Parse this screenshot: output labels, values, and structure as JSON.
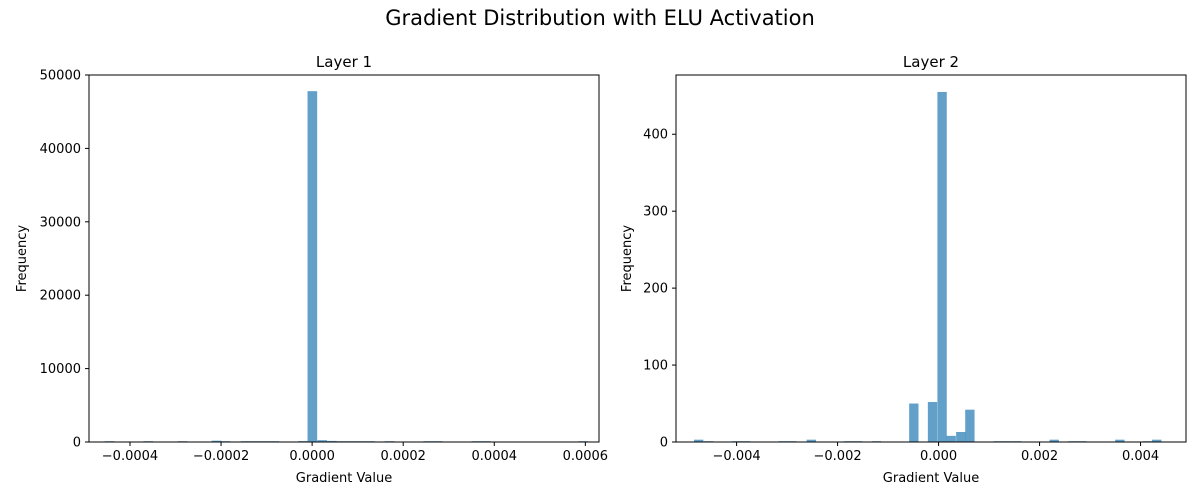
{
  "figure": {
    "title": "Gradient Distribution with ELU Activation"
  },
  "chart_data": [
    {
      "type": "bar",
      "title": "Layer 1",
      "xlabel": "Gradient Value",
      "ylabel": "Frequency",
      "xlim": [
        -0.00049,
        0.00063
      ],
      "ylim": [
        0,
        50000
      ],
      "xticks": [
        -0.0004,
        -0.0002,
        0.0,
        0.0002,
        0.0004,
        0.0006
      ],
      "xtick_labels": [
        "−0.0004",
        "−0.0002",
        "0.0000",
        "0.0002",
        "0.0004",
        "0.0006"
      ],
      "yticks": [
        0,
        10000,
        20000,
        30000,
        40000,
        50000
      ],
      "ytick_labels": [
        "0",
        "10000",
        "20000",
        "30000",
        "40000",
        "50000"
      ],
      "color": "#1f77b4",
      "bar_alpha": 0.7,
      "bin_width": 2.12e-05,
      "bins": [
        {
          "x": -0.000445,
          "count": 60
        },
        {
          "x": -0.00036,
          "count": 40
        },
        {
          "x": -0.000285,
          "count": 40
        },
        {
          "x": -0.00021,
          "count": 180
        },
        {
          "x": -0.00019,
          "count": 60
        },
        {
          "x": -0.000146,
          "count": 60
        },
        {
          "x": -0.000125,
          "count": 50
        },
        {
          "x": -0.000104,
          "count": 50
        },
        {
          "x": -8.3e-05,
          "count": 50
        },
        {
          "x": -2e-05,
          "count": 120
        },
        {
          "x": 5e-07,
          "count": 47800
        },
        {
          "x": 2.2e-05,
          "count": 250
        },
        {
          "x": 4.3e-05,
          "count": 150
        },
        {
          "x": 6.4e-05,
          "count": 80
        },
        {
          "x": 8.5e-05,
          "count": 60
        },
        {
          "x": 0.000106,
          "count": 60
        },
        {
          "x": 0.000127,
          "count": 60
        },
        {
          "x": 0.00017,
          "count": 50
        },
        {
          "x": 0.000255,
          "count": 50
        },
        {
          "x": 0.000276,
          "count": 40
        },
        {
          "x": 0.000361,
          "count": 40
        },
        {
          "x": 0.000382,
          "count": 40
        },
        {
          "x": 0.000595,
          "count": 60
        }
      ]
    },
    {
      "type": "bar",
      "title": "Layer 2",
      "xlabel": "Gradient Value",
      "ylabel": "Frequency",
      "xlim": [
        -0.0052,
        0.0049
      ],
      "ylim": [
        0,
        477
      ],
      "xticks": [
        -0.004,
        -0.002,
        0.0,
        0.002,
        0.004
      ],
      "xtick_labels": [
        "−0.004",
        "−0.002",
        "0.000",
        "0.002",
        "0.004"
      ],
      "yticks": [
        0,
        100,
        200,
        300,
        400
      ],
      "ytick_labels": [
        "0",
        "100",
        "200",
        "300",
        "400"
      ],
      "color": "#1f77b4",
      "bar_alpha": 0.7,
      "bin_width": 0.000185,
      "bins": [
        {
          "x": -0.00475,
          "count": 3
        },
        {
          "x": -0.00455,
          "count": 1
        },
        {
          "x": -0.004,
          "count": 1
        },
        {
          "x": -0.00382,
          "count": 1
        },
        {
          "x": -0.00308,
          "count": 1
        },
        {
          "x": -0.0029,
          "count": 1
        },
        {
          "x": -0.00252,
          "count": 3
        },
        {
          "x": -0.00178,
          "count": 1
        },
        {
          "x": -0.0016,
          "count": 1
        },
        {
          "x": -0.00123,
          "count": 1
        },
        {
          "x": -0.00049,
          "count": 50
        },
        {
          "x": -0.00012,
          "count": 52
        },
        {
          "x": 7e-05,
          "count": 455
        },
        {
          "x": 0.00025,
          "count": 8
        },
        {
          "x": 0.00044,
          "count": 13
        },
        {
          "x": 0.00062,
          "count": 42
        },
        {
          "x": 0.00118,
          "count": 1
        },
        {
          "x": 0.00136,
          "count": 1
        },
        {
          "x": 0.00155,
          "count": 1
        },
        {
          "x": 0.00229,
          "count": 3
        },
        {
          "x": 0.00266,
          "count": 1
        },
        {
          "x": 0.00284,
          "count": 1
        },
        {
          "x": 0.00359,
          "count": 3
        },
        {
          "x": 0.00414,
          "count": 1
        },
        {
          "x": 0.00432,
          "count": 3
        }
      ]
    }
  ]
}
